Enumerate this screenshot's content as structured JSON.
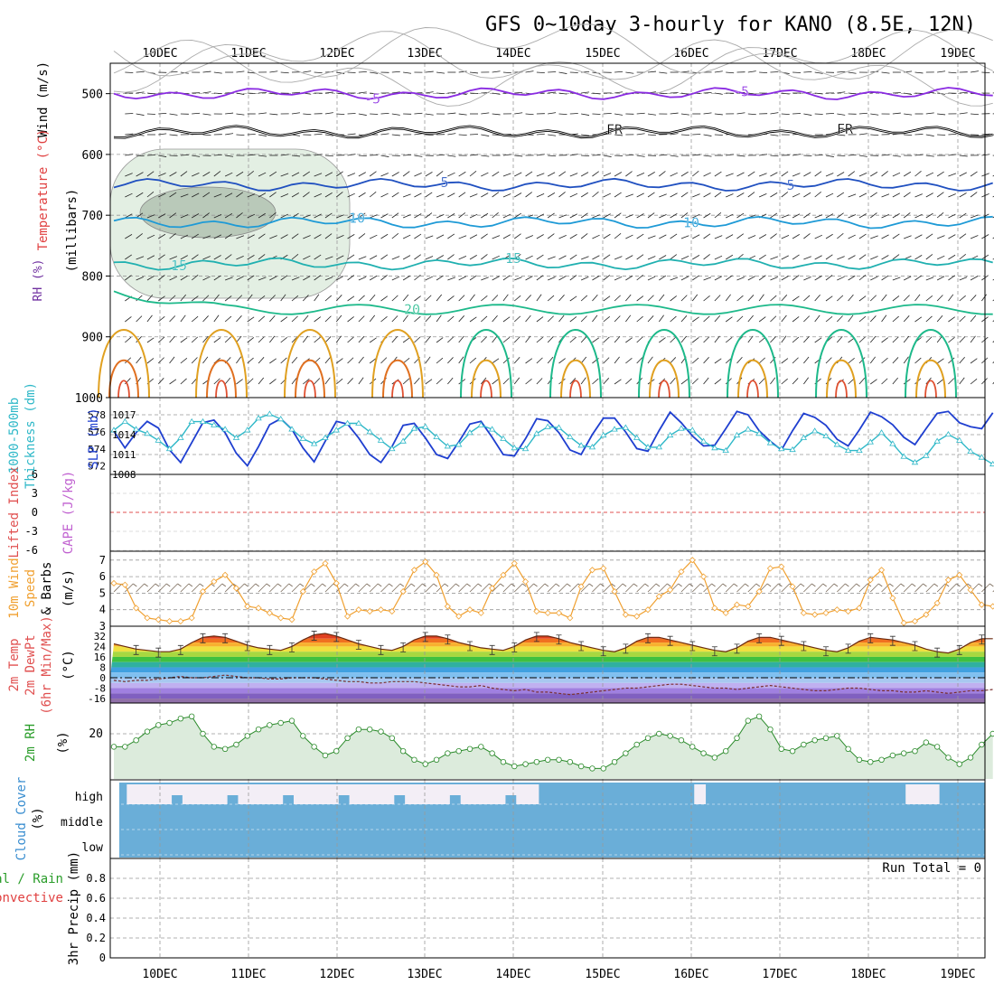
{
  "page": {
    "title": "GFS 0~10day 3-hourly for KANO (8.5E, 12N)",
    "dates": [
      "10DEC",
      "11DEC",
      "12DEC",
      "13DEC",
      "14DEC",
      "15DEC",
      "16DEC",
      "17DEC",
      "18DEC",
      "19DEC"
    ],
    "run_total": "Run Total = 0"
  },
  "chart_data": {
    "type": "meteogram",
    "x_labels": [
      "10DEC",
      "11DEC",
      "12DEC",
      "13DEC",
      "14DEC",
      "15DEC",
      "16DEC",
      "17DEC",
      "18DEC",
      "19DEC"
    ],
    "x_unit": "3-hourly steps, 8 per day",
    "panels": {
      "upper_air": {
        "ylabel": [
          "Wind (m/s)",
          "Temperature (°C)",
          "RH (%)",
          "(millibars)"
        ],
        "ylabel_colors": [
          "#000000",
          "#e04040",
          "#7030a0",
          "#2a9d2a"
        ],
        "yticks": [
          500,
          600,
          700,
          800,
          900,
          1000
        ],
        "ylim": [
          1000,
          450
        ],
        "temperature_contours": [
          {
            "label": "-5",
            "level": -5,
            "pressure": 500,
            "color": "#8a2be2"
          },
          {
            "label": "FR",
            "level": 0,
            "pressure": 563,
            "color": "#000000"
          },
          {
            "label": "5",
            "level": 5,
            "pressure": 650,
            "color": "#2050c0"
          },
          {
            "label": "10",
            "level": 10,
            "pressure": 712,
            "color": "#1e9ad6"
          },
          {
            "label": "15",
            "level": 15,
            "pressure": 780,
            "color": "#20b0b0"
          },
          {
            "label": "20",
            "level": 20,
            "pressure": 855,
            "color": "#1db98a"
          }
        ],
        "rh_labels": [
          "10",
          "30",
          "50",
          "30",
          "10",
          "10"
        ]
      },
      "thickness_slp": {
        "ylabel_left": [
          "1000-500mb",
          "Thickness (dm)"
        ],
        "ylabel_right": "SLP (mb)",
        "yticks_thickness": [
          572,
          574,
          576,
          578
        ],
        "yticks_slp": [
          1008,
          1011,
          1014,
          1017
        ],
        "thickness_dm": [
          576.2,
          577.2,
          576.3,
          575.8,
          575.0,
          574.0,
          575.3,
          577.2,
          577.2,
          576.8,
          576.3,
          575.3,
          576.2,
          577.6,
          578.1,
          577.5,
          576.3,
          575.2,
          574.6,
          575.3,
          576.2,
          577.0,
          577.0,
          576.0,
          575.0,
          574.0,
          574.9,
          576.4,
          576.6,
          575.4,
          574.3,
          574.5,
          575.9,
          576.8,
          576.3,
          575.2,
          574.1,
          574.0,
          575.8,
          576.6,
          576.5,
          575.4,
          574.4,
          574.2,
          575.6,
          576.3,
          576.5,
          575.3,
          574.2,
          574.2,
          575.6,
          576.4,
          576.2,
          574.9,
          574.1,
          573.8,
          575.6,
          576.3,
          575.8,
          574.7,
          574.0,
          573.9,
          575.3,
          576.1,
          575.5,
          574.5,
          573.8,
          573.8,
          574.8,
          575.9,
          574.6,
          573.1,
          572.4,
          573.2,
          574.9,
          575.7,
          575.0,
          573.7,
          573.0,
          572.2
        ],
        "slp_mb": [
          1014.5,
          1012.0,
          1014.3,
          1016.0,
          1015.0,
          1011.7,
          1009.8,
          1012.8,
          1015.8,
          1016.2,
          1014.3,
          1011.2,
          1009.3,
          1012.2,
          1015.5,
          1016.4,
          1014.8,
          1012.0,
          1009.9,
          1013.0,
          1016.0,
          1015.6,
          1013.5,
          1011.0,
          1009.8,
          1012.2,
          1015.4,
          1015.7,
          1013.5,
          1011.0,
          1010.4,
          1012.9,
          1015.6,
          1016.0,
          1013.6,
          1011.0,
          1010.8,
          1013.4,
          1016.4,
          1016.1,
          1014.3,
          1011.7,
          1011.0,
          1014.0,
          1016.5,
          1016.5,
          1014.4,
          1011.9,
          1011.5,
          1014.6,
          1017.4,
          1015.8,
          1013.8,
          1012.3,
          1012.4,
          1014.9,
          1017.5,
          1017.0,
          1014.6,
          1013.0,
          1011.7,
          1014.6,
          1017.2,
          1016.6,
          1015.4,
          1013.3,
          1012.3,
          1014.7,
          1017.4,
          1016.7,
          1015.5,
          1013.6,
          1012.5,
          1014.9,
          1017.2,
          1017.5,
          1015.8,
          1015.2,
          1014.9,
          1017.3
        ]
      },
      "stability": {
        "ylabel_left": "Lifted Index",
        "ylabel_right": "CAPE (J/kg)",
        "yticks": [
          6,
          3,
          0,
          -3,
          -6
        ],
        "lifted_index_zero_line": 0
      },
      "wind10m": {
        "ylabel": [
          "10m Wind",
          "Speed",
          "& Barbs",
          "(m/s)"
        ],
        "yticks": [
          3,
          4,
          5,
          6,
          7
        ],
        "speed_ms": [
          5.6,
          5.5,
          4.1,
          3.5,
          3.4,
          3.3,
          3.3,
          3.5,
          5.1,
          5.7,
          6.1,
          5.3,
          4.2,
          4.1,
          3.8,
          3.5,
          3.4,
          5.1,
          6.3,
          6.8,
          5.6,
          3.6,
          4.0,
          3.9,
          4.0,
          3.9,
          5.1,
          6.4,
          6.9,
          6.1,
          4.2,
          3.6,
          4.0,
          3.8,
          5.3,
          6.1,
          6.8,
          5.7,
          3.9,
          3.8,
          3.8,
          3.5,
          5.4,
          6.4,
          6.5,
          5.1,
          3.7,
          3.6,
          4.0,
          4.8,
          5.2,
          6.3,
          7.0,
          6.0,
          4.1,
          3.8,
          4.3,
          4.2,
          5.1,
          6.5,
          6.6,
          5.4,
          3.8,
          3.7,
          3.8,
          4.0,
          3.9,
          4.1,
          5.8,
          6.4,
          4.7,
          3.2,
          3.3,
          3.7,
          4.4,
          5.8,
          6.1,
          5.2,
          4.3,
          4.2
        ]
      },
      "temp2m": {
        "ylabel": [
          "2m Temp",
          "2m DewPt",
          "(6hr Min/Max)",
          "(°C)"
        ],
        "yticks": [
          32,
          24,
          16,
          8,
          0,
          -8,
          -16
        ],
        "temperature_c": [
          26,
          24,
          22,
          21,
          20,
          20,
          22,
          27,
          31,
          32,
          31,
          28,
          25,
          23,
          22,
          21,
          24,
          29,
          33,
          34,
          32,
          29,
          26,
          24,
          22,
          21,
          24,
          29,
          32,
          32,
          30,
          27,
          25,
          23,
          22,
          21,
          24,
          29,
          32,
          32,
          30,
          27,
          25,
          23,
          21,
          20,
          23,
          28,
          31,
          31,
          29,
          27,
          25,
          23,
          21,
          20,
          23,
          28,
          31,
          31,
          29,
          27,
          25,
          23,
          21,
          20,
          23,
          28,
          31,
          30,
          29,
          27,
          25,
          22,
          20,
          19,
          22,
          27,
          30,
          30
        ],
        "dewpoint_c": [
          -2,
          -3,
          -2,
          -2,
          -1,
          0,
          1,
          0,
          0,
          1,
          2,
          1,
          0,
          0,
          -1,
          -1,
          0,
          0,
          0,
          -1,
          -2,
          -3,
          -3,
          -4,
          -4,
          -3,
          -3,
          -3,
          -4,
          -5,
          -6,
          -7,
          -7,
          -6,
          -8,
          -9,
          -10,
          -9,
          -11,
          -11,
          -12,
          -13,
          -12,
          -11,
          -10,
          -9,
          -8,
          -8,
          -7,
          -6,
          -5,
          -5,
          -6,
          -7,
          -8,
          -8,
          -9,
          -8,
          -7,
          -6,
          -7,
          -8,
          -9,
          -10,
          -10,
          -9,
          -8,
          -8,
          -9,
          -10,
          -10,
          -11,
          -11,
          -10,
          -11,
          -12,
          -11,
          -10,
          -10,
          -9
        ]
      },
      "rh2m": {
        "ylabel": [
          "2m RH",
          "(%)"
        ],
        "yticks": [
          20
        ],
        "rh_percent": [
          14,
          14,
          17,
          21,
          24,
          25,
          27,
          28,
          20,
          14,
          13,
          15,
          19,
          22,
          24,
          25,
          26,
          19,
          14,
          10,
          12,
          18,
          22,
          22,
          21,
          18,
          12,
          8,
          6,
          8,
          11,
          12,
          13,
          14,
          11,
          7,
          5,
          6,
          7,
          8,
          8,
          7,
          5,
          4,
          4,
          7,
          11,
          15,
          18,
          20,
          19,
          17,
          14,
          11,
          9,
          12,
          18,
          26,
          28,
          22,
          13,
          12,
          15,
          17,
          18,
          19,
          13,
          8,
          7,
          8,
          10,
          11,
          12,
          16,
          14,
          9,
          6,
          9,
          15,
          20
        ]
      },
      "cloud": {
        "ylabel": [
          "Cloud Cover",
          "(%)"
        ],
        "levels": [
          "high",
          "middle",
          "low"
        ],
        "high_cloud_clear_steps": [
          1,
          2,
          3,
          4,
          5,
          6,
          7,
          8,
          9,
          10,
          11,
          12,
          13,
          14,
          15,
          16,
          17,
          18,
          19,
          20,
          21,
          22,
          23,
          24,
          25,
          26,
          27,
          28,
          29,
          30,
          31,
          32,
          33,
          34,
          35,
          36,
          37,
          52,
          71,
          72,
          73,
          80,
          81,
          82,
          87,
          88,
          89,
          90
        ]
      },
      "precip": {
        "ylabel_left": [
          "Total / Rain",
          "Convective"
        ],
        "ylabel_left_colors": [
          "#2a9d2a",
          "#e04040"
        ],
        "ylabel_right": "3hr Precip (mm)",
        "yticks": [
          0,
          0.2,
          0.4,
          0.6,
          0.8
        ],
        "ylim": [
          0,
          1.0
        ],
        "total_mm": 0
      }
    }
  }
}
